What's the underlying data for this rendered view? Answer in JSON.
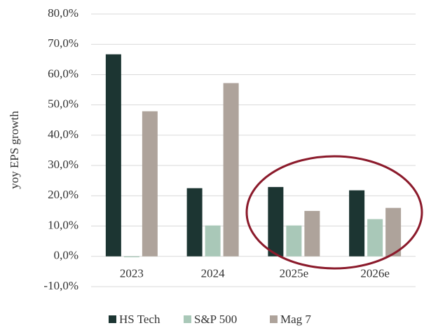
{
  "chart_data": {
    "type": "bar",
    "y_label": "yoy EPS growth",
    "categories": [
      "2023",
      "2024",
      "2025e",
      "2026e"
    ],
    "series": [
      {
        "name": "HS Tech",
        "color": "#1c3532",
        "values": [
          66.7,
          22.5,
          22.9,
          21.8
        ]
      },
      {
        "name": "S&P 500",
        "color": "#a9c8b8",
        "values": [
          -0.3,
          10.2,
          10.2,
          12.3
        ]
      },
      {
        "name": "Mag 7",
        "color": "#aea39b",
        "values": [
          47.9,
          57.2,
          15.0,
          16.0
        ]
      }
    ],
    "ylim": [
      -10,
      80
    ],
    "yticks": [
      {
        "value": -10,
        "label": "-10,0%"
      },
      {
        "value": 0,
        "label": "0,0%"
      },
      {
        "value": 10,
        "label": "10,0%"
      },
      {
        "value": 20,
        "label": "20,0%"
      },
      {
        "value": 30,
        "label": "30,0%"
      },
      {
        "value": 40,
        "label": "40,0%"
      },
      {
        "value": 50,
        "label": "50,0%"
      },
      {
        "value": 60,
        "label": "60,0%"
      },
      {
        "value": 70,
        "label": "70,0%"
      },
      {
        "value": 80,
        "label": "80,0%"
      }
    ],
    "grid": true,
    "legend": "bottom"
  }
}
